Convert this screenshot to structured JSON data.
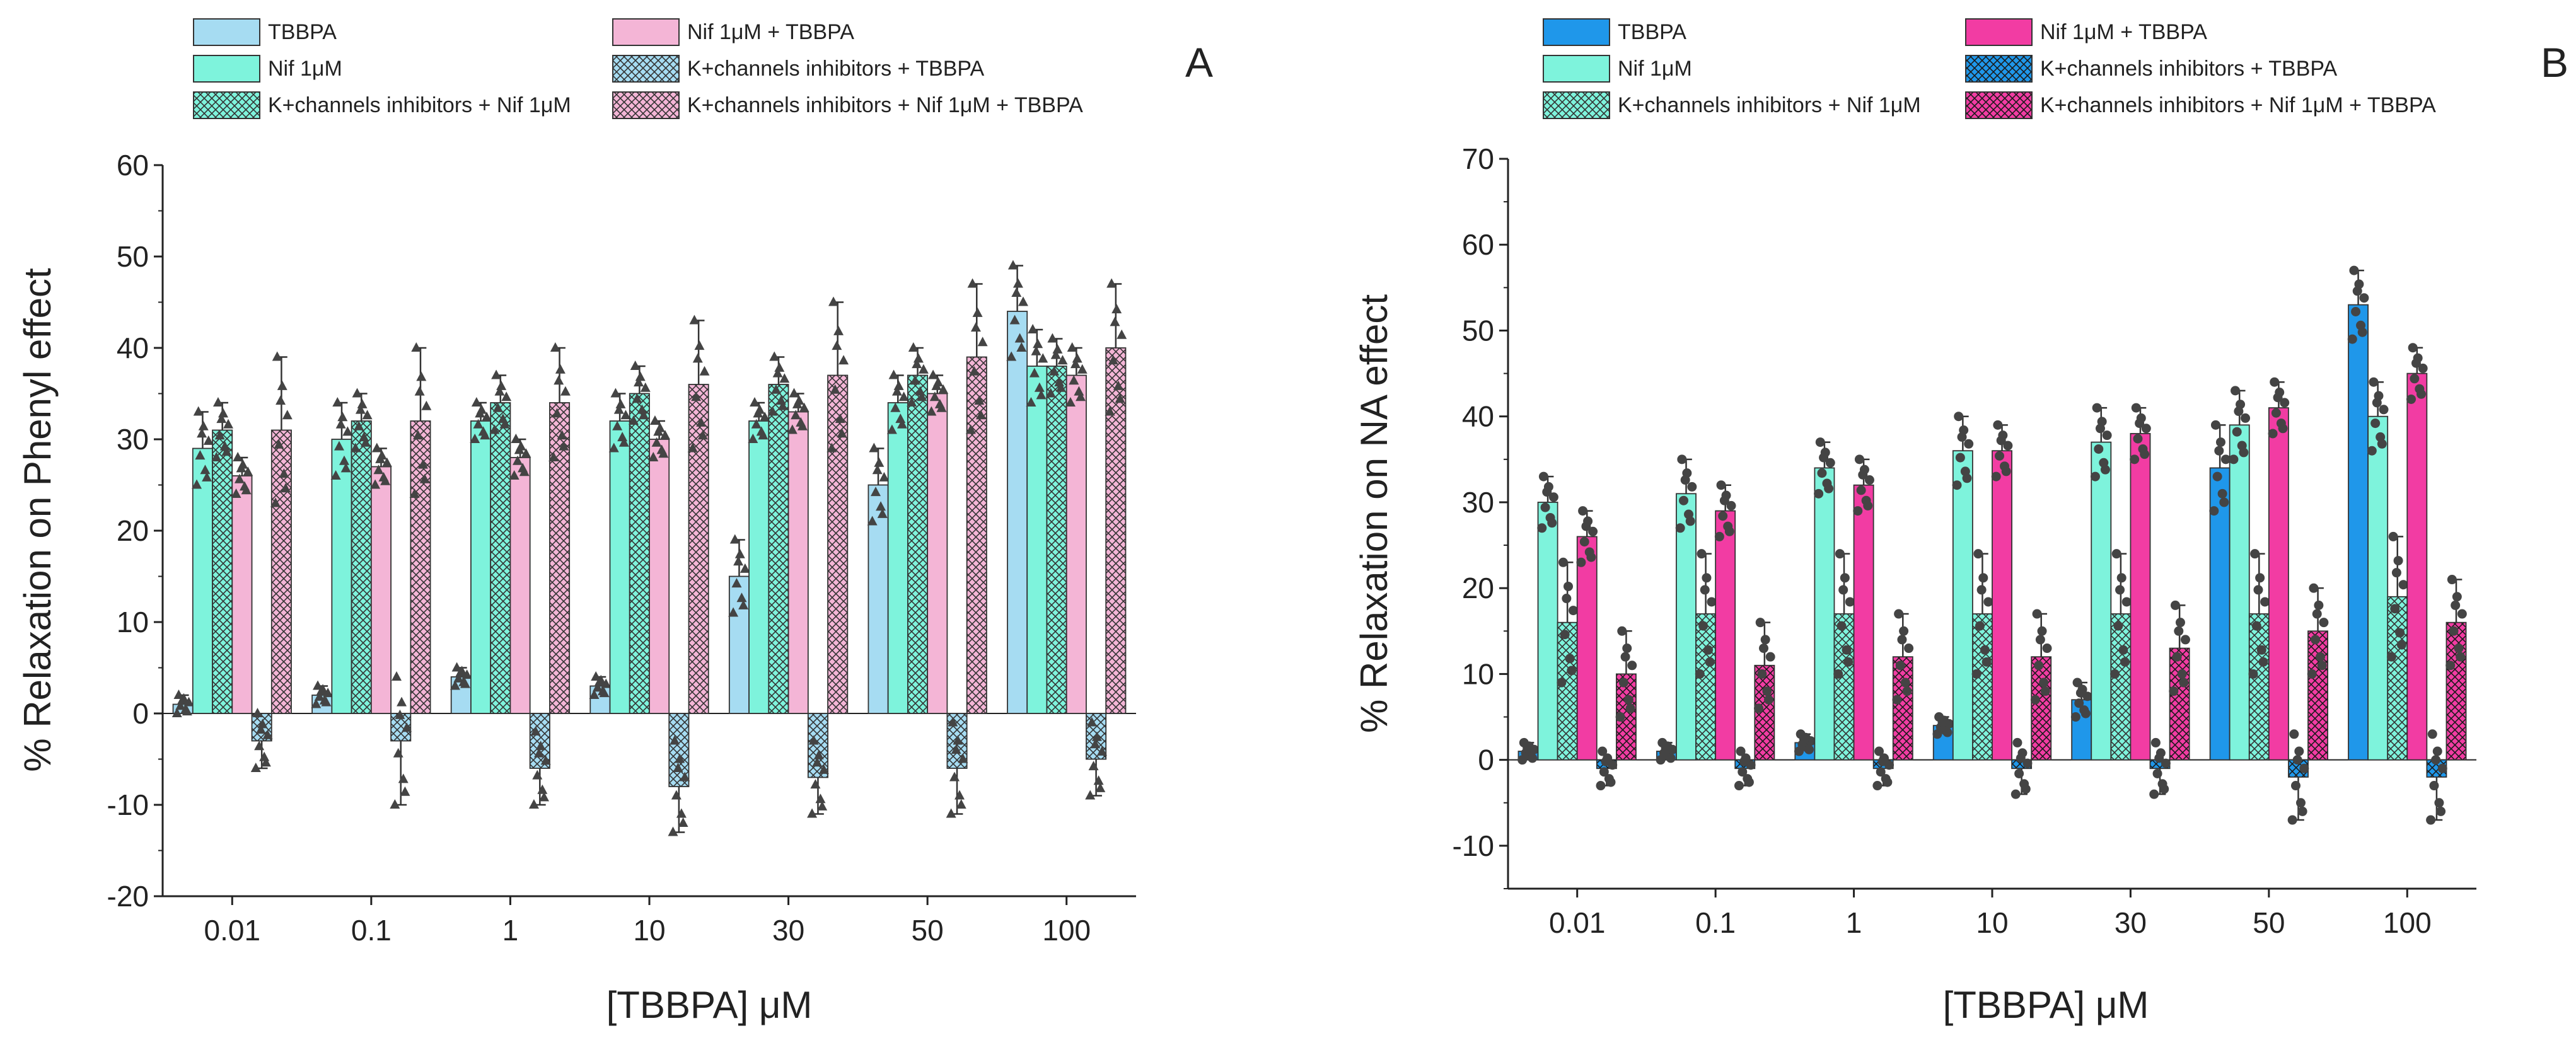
{
  "figure": {
    "panels": [
      "A",
      "B"
    ]
  },
  "colors": {
    "panelA": [
      "#a6dcf2",
      "#7ef3dc",
      "#7ef3dc",
      "#f4b5d6",
      "#a6dcf2",
      "#f4b5d6"
    ],
    "panelB": [
      "#1f97ea",
      "#7ef3dc",
      "#7ef3dc",
      "#f23ca3",
      "#1f97ea",
      "#f23ca3"
    ],
    "hatched": [
      false,
      false,
      true,
      false,
      true,
      true
    ],
    "bar_outline": "#333333",
    "markers": "#444444"
  },
  "chart_data": [
    {
      "type": "bar",
      "panel_label": "A",
      "title": "",
      "xlabel": "[TBBPA] μM",
      "ylabel": "% Relaxation on Phenyl effect",
      "ylim": [
        -20,
        60
      ],
      "yticks": [
        -20,
        -10,
        0,
        10,
        20,
        30,
        40,
        50,
        60
      ],
      "categories": [
        "0.01",
        "0.1",
        "1",
        "10",
        "30",
        "50",
        "100"
      ],
      "marker": "triangle",
      "series": [
        {
          "name": "TBBPA",
          "values": [
            1,
            2,
            4,
            3,
            15,
            25,
            44
          ],
          "errors": [
            1,
            1,
            1,
            1,
            4,
            4,
            5
          ]
        },
        {
          "name": "Nif 1μM",
          "values": [
            29,
            30,
            32,
            32,
            32,
            34,
            38
          ],
          "errors": [
            4,
            4,
            2,
            3,
            2,
            3,
            4
          ]
        },
        {
          "name": "K+channels inhibitors + Nif 1μM",
          "values": [
            31,
            32,
            34,
            35,
            36,
            37,
            38
          ],
          "errors": [
            3,
            3,
            3,
            3,
            3,
            3,
            3
          ]
        },
        {
          "name": "Nif 1μM + TBBPA",
          "values": [
            26,
            27,
            28,
            30,
            33,
            35,
            37
          ],
          "errors": [
            2,
            2,
            2,
            2,
            2,
            2,
            3
          ]
        },
        {
          "name": "K+channels inhibitors + TBBPA",
          "values": [
            -3,
            -3,
            -6,
            -8,
            -7,
            -6,
            -5
          ],
          "errors": [
            3,
            7,
            4,
            5,
            4,
            5,
            4
          ]
        },
        {
          "name": "K+channels inhibitors + Nif 1μM + TBBPA",
          "values": [
            31,
            32,
            34,
            36,
            37,
            39,
            40
          ],
          "errors": [
            8,
            8,
            6,
            7,
            8,
            8,
            7
          ]
        }
      ]
    },
    {
      "type": "bar",
      "panel_label": "B",
      "title": "",
      "xlabel": "[TBBPA] μM",
      "ylabel": "% Relaxation on NA effect",
      "ylim": [
        -15,
        70
      ],
      "yticks": [
        -10,
        0,
        10,
        20,
        30,
        40,
        50,
        60,
        70
      ],
      "categories": [
        "0.01",
        "0.1",
        "1",
        "10",
        "30",
        "50",
        "100"
      ],
      "marker": "circle",
      "series": [
        {
          "name": "TBBPA",
          "values": [
            1,
            1,
            2,
            4,
            7,
            34,
            53
          ],
          "errors": [
            1,
            1,
            1,
            1,
            2,
            5,
            4
          ]
        },
        {
          "name": "Nif 1μM",
          "values": [
            30,
            31,
            34,
            36,
            37,
            39,
            40
          ],
          "errors": [
            3,
            4,
            3,
            4,
            4,
            4,
            4
          ]
        },
        {
          "name": "K+channels inhibitors + Nif 1μM",
          "values": [
            16,
            17,
            17,
            17,
            17,
            17,
            19
          ],
          "errors": [
            7,
            7,
            7,
            7,
            7,
            7,
            7
          ]
        },
        {
          "name": "Nif 1μM + TBBPA",
          "values": [
            26,
            29,
            32,
            36,
            38,
            41,
            45
          ],
          "errors": [
            3,
            3,
            3,
            3,
            3,
            3,
            3
          ]
        },
        {
          "name": "K+channels inhibitors + TBBPA",
          "values": [
            -1,
            -1,
            -1,
            -1,
            -1,
            -2,
            -2
          ],
          "errors": [
            2,
            2,
            2,
            3,
            3,
            5,
            5
          ]
        },
        {
          "name": "K+channels inhibitors + Nif 1μM + TBBPA",
          "values": [
            10,
            11,
            12,
            12,
            13,
            15,
            16
          ],
          "errors": [
            5,
            5,
            5,
            5,
            5,
            5,
            5
          ]
        }
      ]
    }
  ],
  "legend": {
    "panelA": {
      "col1": [
        "TBBPA",
        "Nif 1μM",
        "K+channels inhibitors + Nif 1μM"
      ],
      "col2": [
        "Nif 1μM + TBBPA",
        "K+channels inhibitors + TBBPA",
        "K+channels inhibitors + Nif 1μM + TBBPA"
      ]
    },
    "panelB": {
      "col1": [
        "TBBPA",
        "Nif 1μM",
        "K+channels inhibitors + Nif 1μM"
      ],
      "col2": [
        "Nif 1μM + TBBPA",
        "K+channels inhibitors + TBBPA",
        "K+channels inhibitors + Nif 1μM + TBBPA"
      ]
    }
  }
}
